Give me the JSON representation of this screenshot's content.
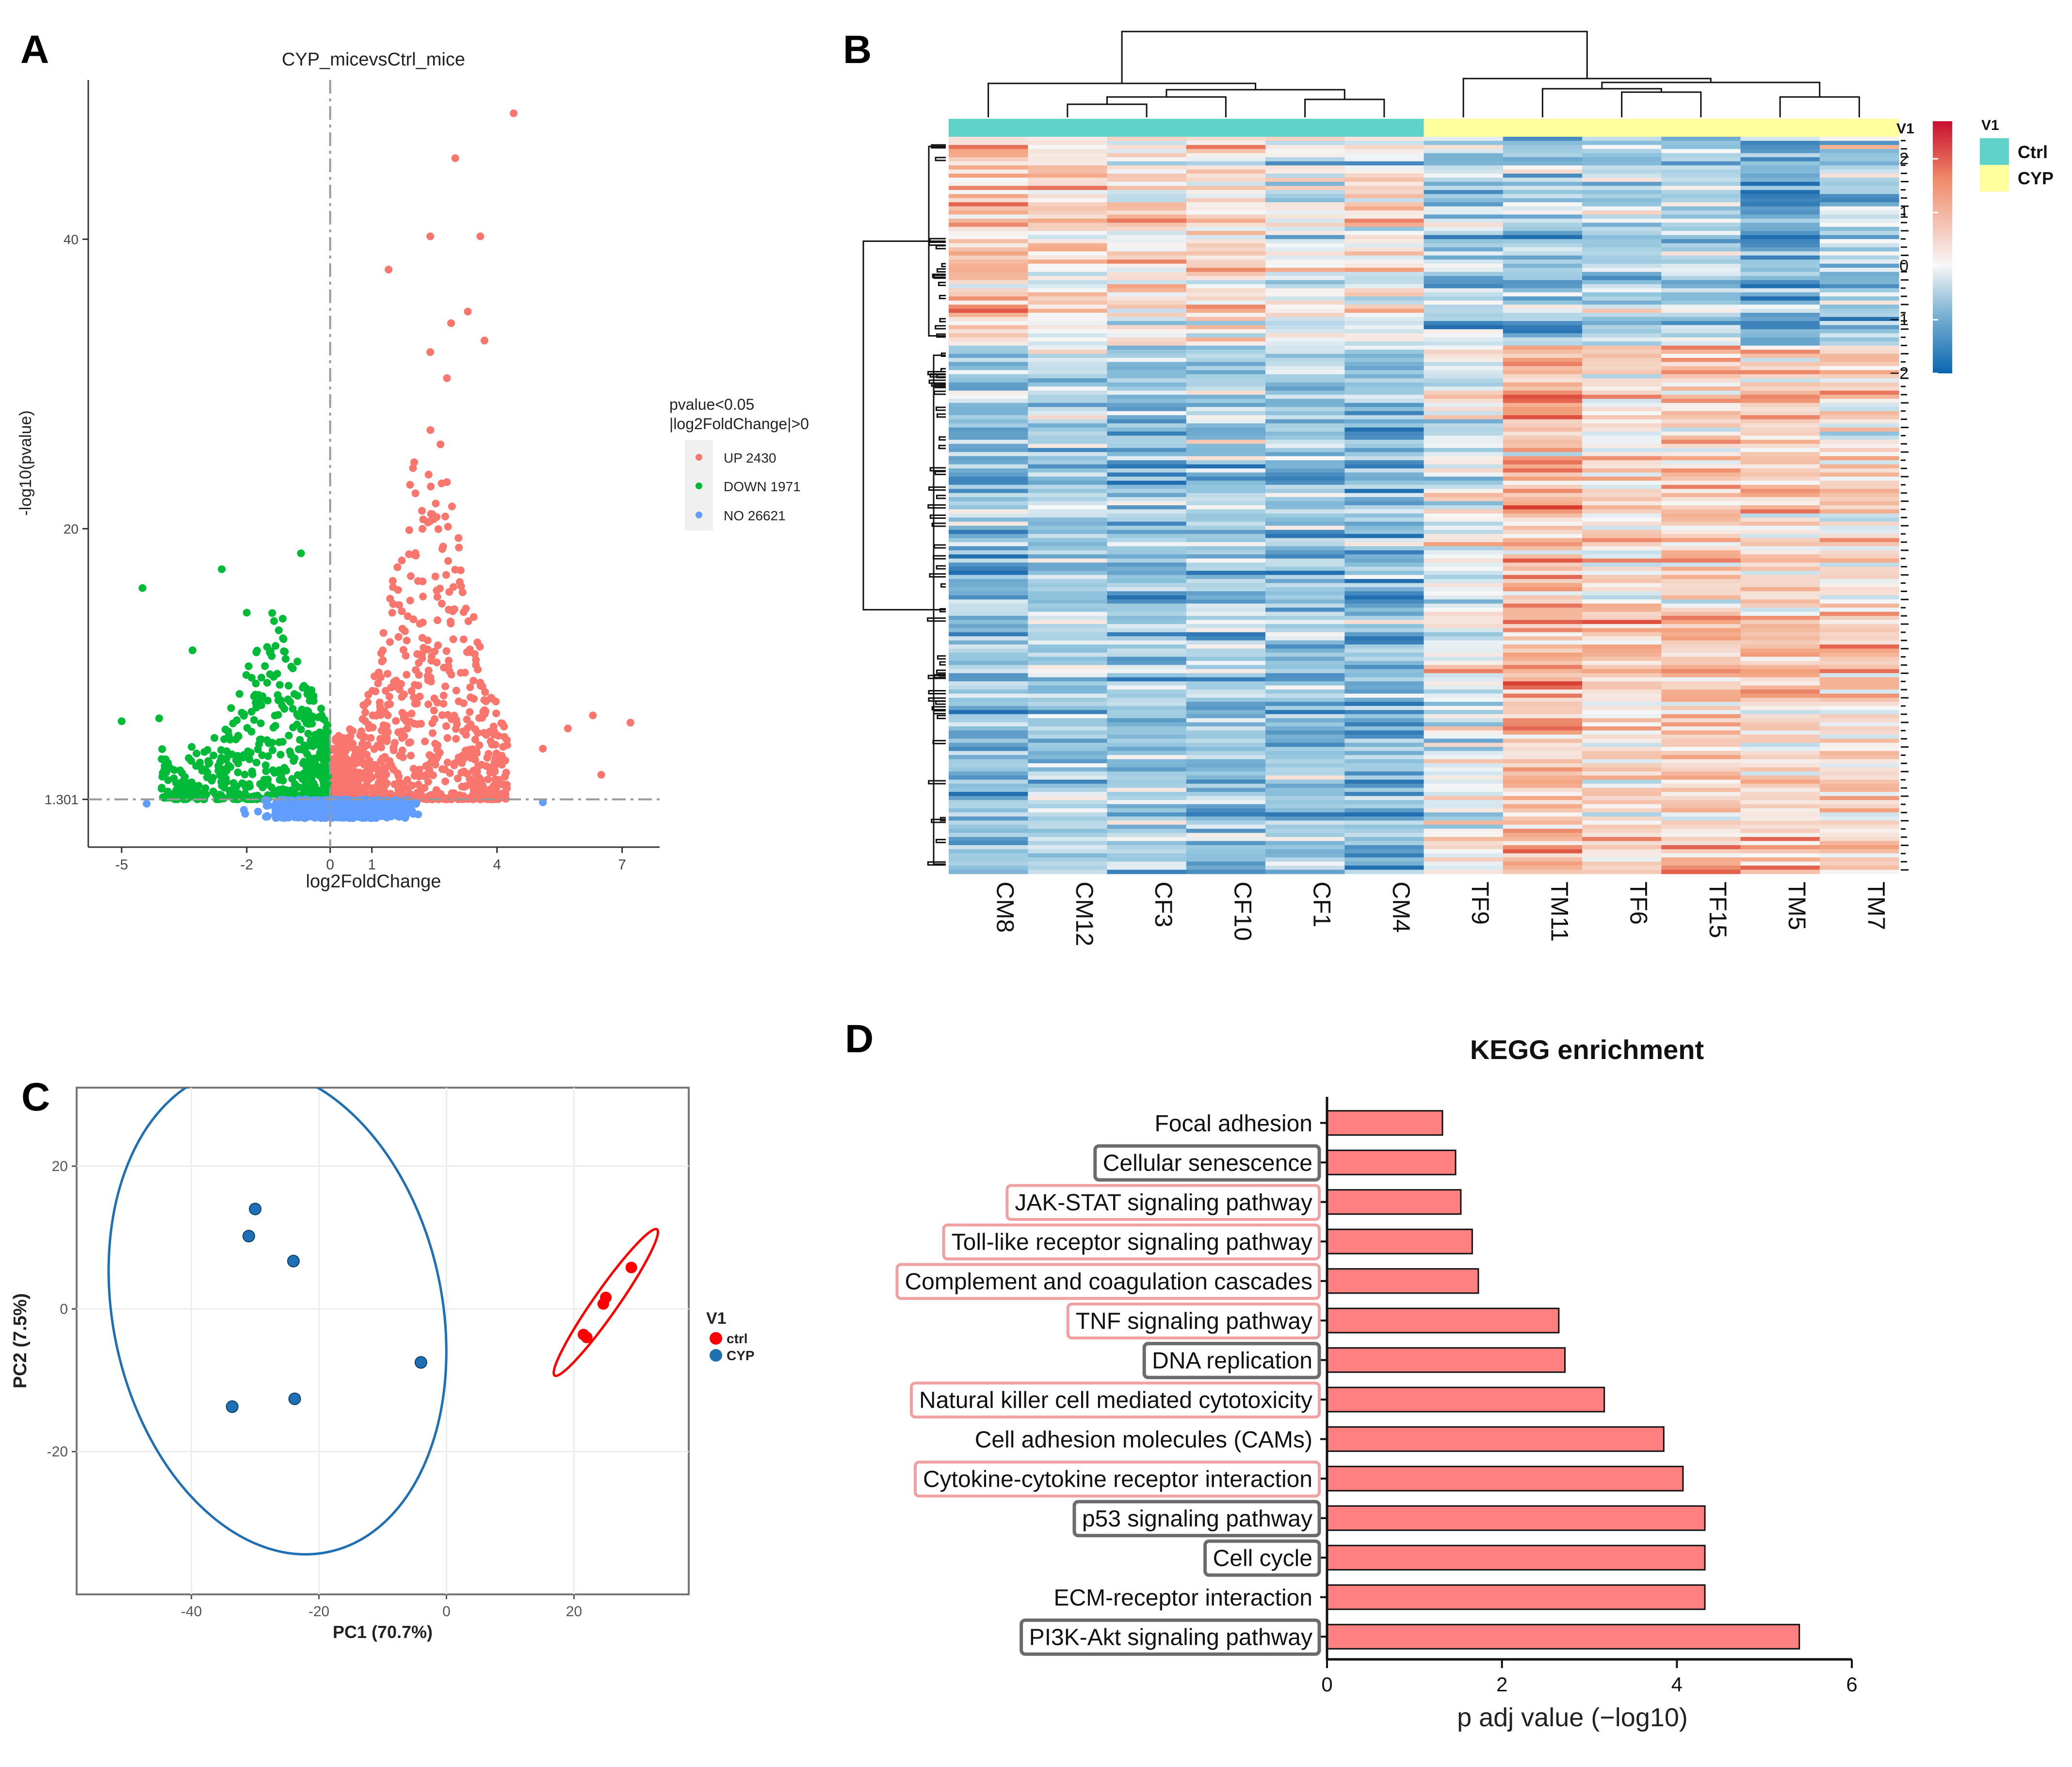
{
  "panels": {
    "a": "A",
    "b": "B",
    "c": "C",
    "d": "D"
  },
  "chart_data": [
    {
      "type": "scatter",
      "panel": "A",
      "title": "CYP_micevsCtrl_mice",
      "xlabel": "log2FoldChange",
      "ylabel": "-log10(pvalue)",
      "xlim": [
        -5.8,
        7.9
      ],
      "ylim": [
        -2,
        51
      ],
      "xticks": [
        -5,
        -2,
        0,
        1,
        4,
        7
      ],
      "yticks": [
        1.301,
        20,
        40
      ],
      "ytick_labels": [
        "1.301",
        "20",
        "40"
      ],
      "threshold_y": 1.301,
      "threshold_x": 0,
      "legend": {
        "title_line1": "pvalue<0.05",
        "title_line2": "|log2FoldChange|>0",
        "position": "right",
        "entries": [
          {
            "label": "UP 2430",
            "color": "#F8766D"
          },
          {
            "label": "DOWN 1971",
            "color": "#00BA38"
          },
          {
            "label": "NO 26621",
            "color": "#619CFF"
          }
        ]
      },
      "groups": [
        {
          "name": "UP",
          "count": 2430,
          "color": "#F8766D"
        },
        {
          "name": "DOWN",
          "count": 1971,
          "color": "#00BA38"
        },
        {
          "name": "NO",
          "count": 26621,
          "color": "#619CFF"
        }
      ],
      "highlighted_points": {
        "UP": [
          [
            4.4,
            48.7
          ],
          [
            3.0,
            45.6
          ],
          [
            3.6,
            40.2
          ],
          [
            2.4,
            40.2
          ],
          [
            1.4,
            37.9
          ],
          [
            3.3,
            35.0
          ],
          [
            2.9,
            34.2
          ],
          [
            3.7,
            33.0
          ],
          [
            2.4,
            32.2
          ],
          [
            2.8,
            30.4
          ],
          [
            7.2,
            6.6
          ],
          [
            6.3,
            7.1
          ],
          [
            5.7,
            6.2
          ],
          [
            6.5,
            3.0
          ],
          [
            5.1,
            4.8
          ]
        ],
        "DOWN": [
          [
            -0.7,
            18.3
          ],
          [
            -2.6,
            17.2
          ],
          [
            -4.5,
            15.9
          ],
          [
            -2.0,
            14.2
          ],
          [
            -3.3,
            11.6
          ],
          [
            -5.0,
            6.7
          ],
          [
            -4.1,
            6.9
          ],
          [
            -1.4,
            11.2
          ]
        ],
        "NO": [
          [
            -4.4,
            1.0
          ],
          [
            5.1,
            1.1
          ]
        ]
      }
    },
    {
      "type": "heatmap",
      "panel": "B",
      "columns": [
        "CM8",
        "CM12",
        "CF3",
        "CF10",
        "CF1",
        "CM4",
        "TF9",
        "TM11",
        "TF6",
        "TF15",
        "TM5",
        "TM7"
      ],
      "annotation_title": "V1",
      "groups": [
        {
          "name": "Ctrl",
          "color": "#5fd3c9",
          "columns": [
            "CM8",
            "CM12",
            "CF3",
            "CF10",
            "CF1",
            "CM4"
          ]
        },
        {
          "name": "CYP",
          "color": "#ffff9e",
          "columns": [
            "TF9",
            "TM11",
            "TF6",
            "TF15",
            "TM5",
            "TM7"
          ]
        }
      ],
      "color_scale": {
        "min": -2,
        "max": 2.7,
        "ticks": [
          2,
          1,
          0,
          -1,
          -2
        ],
        "tick_labels": [
          "2",
          "1",
          "0",
          "−1",
          "−2"
        ],
        "low": "#2166ac",
        "mid": "#f7f7f7",
        "high": "#d7191c"
      },
      "row_clusters": [
        {
          "name": "cluster 1 (top)",
          "Ctrl_pattern": "high",
          "CYP_pattern": "low"
        },
        {
          "name": "cluster 2 (bottom)",
          "Ctrl_pattern": "low",
          "CYP_pattern": "high"
        }
      ]
    },
    {
      "type": "scatter",
      "panel": "C",
      "xlabel": "PC1 (70.7%)",
      "ylabel": "PC2 (7.5%)",
      "xlim": [
        -58,
        38
      ],
      "ylim": [
        -40,
        31
      ],
      "xticks": [
        -40,
        -20,
        0,
        20
      ],
      "yticks": [
        -20,
        0,
        20
      ],
      "legend": {
        "title": "V1",
        "position": "right",
        "entries": [
          {
            "label": "ctrl",
            "color": "#ff0000"
          },
          {
            "label": "CYP",
            "color": "#1f6fb4"
          }
        ]
      },
      "series": [
        {
          "name": "ctrl",
          "color": "#ff0000",
          "points": [
            [
              21.5,
              -3.6
            ],
            [
              22.0,
              -4.0
            ],
            [
              24.6,
              0.7
            ],
            [
              25.0,
              1.6
            ],
            [
              29.0,
              5.8
            ]
          ]
        },
        {
          "name": "CYP",
          "color": "#1f6fb4",
          "points": [
            [
              -30.0,
              14.0
            ],
            [
              -31.0,
              10.2
            ],
            [
              -24.0,
              6.7
            ],
            [
              -4.0,
              -7.5
            ],
            [
              -33.6,
              -13.7
            ],
            [
              -23.8,
              -12.6
            ]
          ]
        }
      ],
      "ellipses": [
        {
          "group": "ctrl",
          "color": "#ff0000",
          "cx": 25.0,
          "cy": 0.9,
          "rx": 14.0,
          "ry": 1.7,
          "angle_deg": -55
        },
        {
          "group": "CYP",
          "color": "#1f6fb4",
          "cx": -26.5,
          "cy": -0.3,
          "rx": 25.8,
          "ry": 34.5,
          "angle_deg": -12
        }
      ]
    },
    {
      "type": "bar",
      "panel": "D",
      "orientation": "horizontal",
      "title": "KEGG enrichment",
      "xlabel": "p adj value (−log10)",
      "xlim": [
        0,
        6
      ],
      "xticks": [
        0,
        2,
        4,
        6
      ],
      "bar_color": "#ff8080",
      "categories": [
        "Focal adhesion",
        "Cellular senescence",
        "JAK-STAT signaling pathway",
        "Toll-like receptor signaling pathway",
        "Complement and coagulation cascades",
        "TNF signaling pathway",
        "DNA replication",
        "Natural killer cell mediated cytotoxicity",
        "Cell adhesion molecules (CAMs)",
        "Cytokine-cytokine receptor interaction",
        "p53 signaling pathway",
        "Cell cycle",
        "ECM-receptor interaction",
        "PI3K-Akt signaling pathway"
      ],
      "values": [
        1.32,
        1.47,
        1.53,
        1.66,
        1.73,
        2.65,
        2.72,
        3.17,
        3.85,
        4.07,
        4.32,
        4.32,
        4.32,
        5.4
      ],
      "label_box": [
        "none",
        "gray",
        "pink",
        "pink",
        "pink",
        "pink",
        "gray",
        "pink",
        "none",
        "pink",
        "gray",
        "gray",
        "none",
        "gray"
      ],
      "box_colors": {
        "gray": "#6b6b6b",
        "pink": "#f0a0a0"
      }
    }
  ]
}
